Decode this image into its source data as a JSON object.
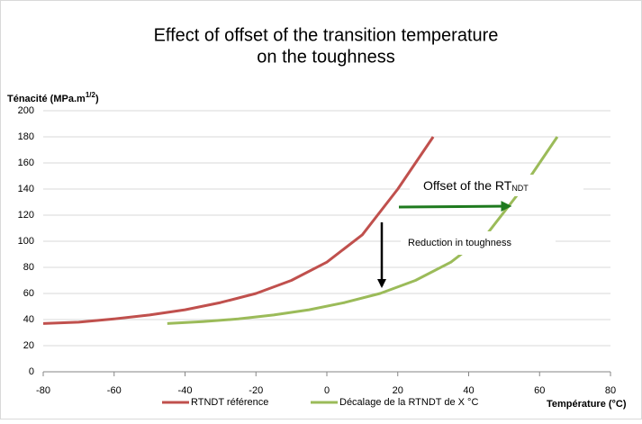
{
  "chart_data": {
    "type": "line",
    "title": [
      "Effect of offset of the transition temperature",
      "on the toughness"
    ],
    "y_label": {
      "text": "Ténacité (MPa.m",
      "sup": "1/2",
      "end": ")"
    },
    "x_label": "Température (°C)",
    "xlim": [
      -80,
      80
    ],
    "xticks": [
      -80,
      -60,
      -40,
      -20,
      0,
      20,
      40,
      60,
      80
    ],
    "ylim": [
      0,
      200
    ],
    "yticks": [
      0,
      20,
      40,
      60,
      80,
      100,
      120,
      140,
      160,
      180,
      200
    ],
    "grid": true,
    "legend": "bottom",
    "series": [
      {
        "name": "RTNDT référence",
        "color": "#c0504d",
        "x": [
          -80,
          -70,
          -60,
          -50,
          -40,
          -30,
          -20,
          -10,
          0,
          10,
          20,
          30
        ],
        "values": [
          37,
          38,
          40.5,
          43.5,
          47.5,
          53,
          60,
          70,
          84,
          105,
          140,
          180
        ]
      },
      {
        "name": "Décalage de la RTNDT de X °C",
        "color": "#9bbb59",
        "x": [
          -45,
          -35,
          -25,
          -15,
          -5,
          5,
          15,
          25,
          35,
          45,
          55,
          65
        ],
        "values": [
          37,
          38.5,
          40.5,
          43.5,
          47.5,
          53,
          60,
          70,
          84,
          105,
          140,
          180
        ]
      }
    ],
    "annotations": [
      {
        "text": "Offset of the RT",
        "sub": "NDT"
      },
      {
        "text": "Reduction in  toughness"
      }
    ]
  }
}
